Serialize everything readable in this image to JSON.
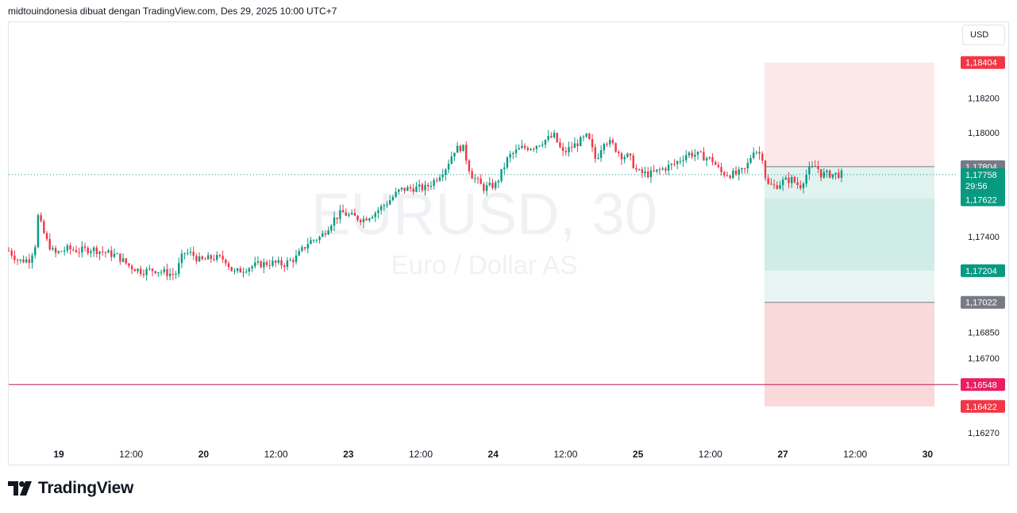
{
  "header": {
    "text": "midtouindonesia dibuat dengan TradingView.com, Des 29, 2025 10:00 UTC+7"
  },
  "currency_button": {
    "label": "USD"
  },
  "brand": {
    "name": "TradingView"
  },
  "chart_data": {
    "type": "candlestick",
    "symbol": "EURUSD, 30",
    "description": "Euro / Dollar AS",
    "y_ticks": [
      "1,18200",
      "1,18000",
      "1,17400",
      "1,16850",
      "1,16700",
      "1,16270"
    ],
    "x_ticks": [
      "19",
      "12:00",
      "20",
      "12:00",
      "23",
      "12:00",
      "24",
      "12:00",
      "25",
      "12:00",
      "27",
      "12:00",
      "30"
    ],
    "ylim": [
      1.1618,
      1.18535
    ],
    "price_labels": [
      {
        "id": "stop-top",
        "text": "1,18404",
        "value": 1.18404,
        "color": "#f23645"
      },
      {
        "id": "entry",
        "text": "1,17804",
        "value": 1.17804,
        "color": "#787b86"
      },
      {
        "id": "last-price",
        "text": "1,17758",
        "value": 1.17758,
        "color": "#089981",
        "countdown": "29:56"
      },
      {
        "id": "level-1",
        "text": "1,17622",
        "value": 1.17622,
        "color": "#089981"
      },
      {
        "id": "level-2",
        "text": "1,17204",
        "value": 1.17204,
        "color": "#089981"
      },
      {
        "id": "entry-2",
        "text": "1,17022",
        "value": 1.17022,
        "color": "#787b86"
      },
      {
        "id": "horizontal-line",
        "text": "1,16548",
        "value": 1.16548,
        "color": "#e91e63"
      },
      {
        "id": "stop-bottom",
        "text": "1,16422",
        "value": 1.16422,
        "color": "#f23645"
      }
    ],
    "positions": [
      {
        "kind": "short",
        "start_fraction": 0.864,
        "end_fraction": 1.0,
        "stop": 1.18404,
        "entry": 1.17804,
        "target1": 1.17622,
        "target2": 1.17204,
        "target_tint": 1.17022
      },
      {
        "kind": "long",
        "start_fraction": 0.864,
        "end_fraction": 1.0,
        "entry": 1.17022,
        "stop": 1.16422
      }
    ],
    "close_path": [
      [
        0,
        1.1732
      ],
      [
        0.012,
        1.1726
      ],
      [
        0.025,
        1.1727
      ],
      [
        0.033,
        1.1737
      ],
      [
        0.035,
        1.1752
      ],
      [
        0.045,
        1.1738
      ],
      [
        0.055,
        1.173
      ],
      [
        0.07,
        1.1733
      ],
      [
        0.085,
        1.1732
      ],
      [
        0.1,
        1.1733
      ],
      [
        0.115,
        1.1731
      ],
      [
        0.13,
        1.1729
      ],
      [
        0.145,
        1.1723
      ],
      [
        0.16,
        1.172
      ],
      [
        0.175,
        1.1721
      ],
      [
        0.19,
        1.1719
      ],
      [
        0.2,
        1.1718
      ],
      [
        0.21,
        1.1731
      ],
      [
        0.22,
        1.173
      ],
      [
        0.23,
        1.1726
      ],
      [
        0.245,
        1.1728
      ],
      [
        0.26,
        1.1727
      ],
      [
        0.27,
        1.1719
      ],
      [
        0.285,
        1.1722
      ],
      [
        0.3,
        1.1724
      ],
      [
        0.315,
        1.1725
      ],
      [
        0.33,
        1.1724
      ],
      [
        0.345,
        1.1728
      ],
      [
        0.36,
        1.1737
      ],
      [
        0.375,
        1.174
      ],
      [
        0.39,
        1.175
      ],
      [
        0.4,
        1.1754
      ],
      [
        0.41,
        1.1752
      ],
      [
        0.425,
        1.175
      ],
      [
        0.44,
        1.1754
      ],
      [
        0.455,
        1.176
      ],
      [
        0.47,
        1.1767
      ],
      [
        0.485,
        1.1768
      ],
      [
        0.5,
        1.1768
      ],
      [
        0.51,
        1.1772
      ],
      [
        0.525,
        1.178
      ],
      [
        0.535,
        1.179
      ],
      [
        0.545,
        1.1792
      ],
      [
        0.555,
        1.1776
      ],
      [
        0.57,
        1.1768
      ],
      [
        0.585,
        1.177
      ],
      [
        0.6,
        1.1786
      ],
      [
        0.615,
        1.1791
      ],
      [
        0.63,
        1.1792
      ],
      [
        0.645,
        1.1796
      ],
      [
        0.655,
        1.1798
      ],
      [
        0.665,
        1.1788
      ],
      [
        0.68,
        1.1793
      ],
      [
        0.695,
        1.1798
      ],
      [
        0.705,
        1.1784
      ],
      [
        0.715,
        1.1796
      ],
      [
        0.725,
        1.1793
      ],
      [
        0.735,
        1.1787
      ],
      [
        0.745,
        1.1786
      ],
      [
        0.755,
        1.1777
      ],
      [
        0.77,
        1.1776
      ],
      [
        0.785,
        1.1779
      ],
      [
        0.8,
        1.1782
      ],
      [
        0.815,
        1.1788
      ],
      [
        0.83,
        1.1787
      ],
      [
        0.845,
        1.1784
      ],
      [
        0.855,
        1.1777
      ],
      [
        0.865,
        1.1776
      ],
      [
        0.875,
        1.1776
      ],
      [
        0.885,
        1.1779
      ],
      [
        0.895,
        1.1791
      ],
      [
        0.905,
        1.1786
      ],
      [
        0.91,
        1.177
      ],
      [
        0.92,
        1.1769
      ],
      [
        0.93,
        1.1772
      ],
      [
        0.94,
        1.1773
      ],
      [
        0.95,
        1.1769
      ],
      [
        0.96,
        1.1778
      ],
      [
        0.97,
        1.1781
      ],
      [
        0.975,
        1.1776
      ]
    ]
  }
}
